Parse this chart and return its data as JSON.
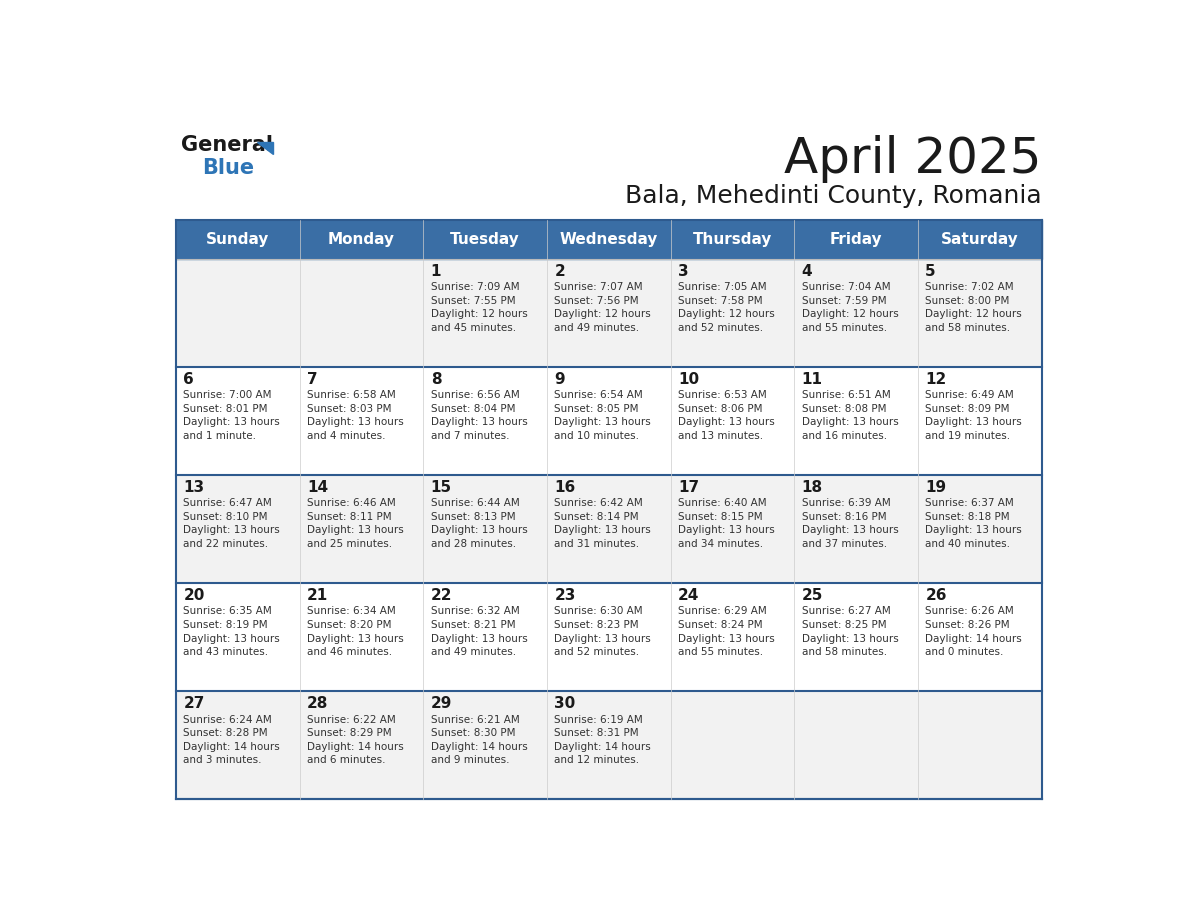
{
  "title": "April 2025",
  "subtitle": "Bala, Mehedinti County, Romania",
  "days_of_week": [
    "Sunday",
    "Monday",
    "Tuesday",
    "Wednesday",
    "Thursday",
    "Friday",
    "Saturday"
  ],
  "header_bg": "#3A6EA5",
  "header_text": "#FFFFFF",
  "row_bg_odd": "#F2F2F2",
  "row_bg_even": "#FFFFFF",
  "text_color": "#333333",
  "day_num_color": "#1a1a1a",
  "border_color": "#2E5A8E",
  "calendar": [
    [
      {
        "day": "",
        "info": ""
      },
      {
        "day": "",
        "info": ""
      },
      {
        "day": "1",
        "info": "Sunrise: 7:09 AM\nSunset: 7:55 PM\nDaylight: 12 hours\nand 45 minutes."
      },
      {
        "day": "2",
        "info": "Sunrise: 7:07 AM\nSunset: 7:56 PM\nDaylight: 12 hours\nand 49 minutes."
      },
      {
        "day": "3",
        "info": "Sunrise: 7:05 AM\nSunset: 7:58 PM\nDaylight: 12 hours\nand 52 minutes."
      },
      {
        "day": "4",
        "info": "Sunrise: 7:04 AM\nSunset: 7:59 PM\nDaylight: 12 hours\nand 55 minutes."
      },
      {
        "day": "5",
        "info": "Sunrise: 7:02 AM\nSunset: 8:00 PM\nDaylight: 12 hours\nand 58 minutes."
      }
    ],
    [
      {
        "day": "6",
        "info": "Sunrise: 7:00 AM\nSunset: 8:01 PM\nDaylight: 13 hours\nand 1 minute."
      },
      {
        "day": "7",
        "info": "Sunrise: 6:58 AM\nSunset: 8:03 PM\nDaylight: 13 hours\nand 4 minutes."
      },
      {
        "day": "8",
        "info": "Sunrise: 6:56 AM\nSunset: 8:04 PM\nDaylight: 13 hours\nand 7 minutes."
      },
      {
        "day": "9",
        "info": "Sunrise: 6:54 AM\nSunset: 8:05 PM\nDaylight: 13 hours\nand 10 minutes."
      },
      {
        "day": "10",
        "info": "Sunrise: 6:53 AM\nSunset: 8:06 PM\nDaylight: 13 hours\nand 13 minutes."
      },
      {
        "day": "11",
        "info": "Sunrise: 6:51 AM\nSunset: 8:08 PM\nDaylight: 13 hours\nand 16 minutes."
      },
      {
        "day": "12",
        "info": "Sunrise: 6:49 AM\nSunset: 8:09 PM\nDaylight: 13 hours\nand 19 minutes."
      }
    ],
    [
      {
        "day": "13",
        "info": "Sunrise: 6:47 AM\nSunset: 8:10 PM\nDaylight: 13 hours\nand 22 minutes."
      },
      {
        "day": "14",
        "info": "Sunrise: 6:46 AM\nSunset: 8:11 PM\nDaylight: 13 hours\nand 25 minutes."
      },
      {
        "day": "15",
        "info": "Sunrise: 6:44 AM\nSunset: 8:13 PM\nDaylight: 13 hours\nand 28 minutes."
      },
      {
        "day": "16",
        "info": "Sunrise: 6:42 AM\nSunset: 8:14 PM\nDaylight: 13 hours\nand 31 minutes."
      },
      {
        "day": "17",
        "info": "Sunrise: 6:40 AM\nSunset: 8:15 PM\nDaylight: 13 hours\nand 34 minutes."
      },
      {
        "day": "18",
        "info": "Sunrise: 6:39 AM\nSunset: 8:16 PM\nDaylight: 13 hours\nand 37 minutes."
      },
      {
        "day": "19",
        "info": "Sunrise: 6:37 AM\nSunset: 8:18 PM\nDaylight: 13 hours\nand 40 minutes."
      }
    ],
    [
      {
        "day": "20",
        "info": "Sunrise: 6:35 AM\nSunset: 8:19 PM\nDaylight: 13 hours\nand 43 minutes."
      },
      {
        "day": "21",
        "info": "Sunrise: 6:34 AM\nSunset: 8:20 PM\nDaylight: 13 hours\nand 46 minutes."
      },
      {
        "day": "22",
        "info": "Sunrise: 6:32 AM\nSunset: 8:21 PM\nDaylight: 13 hours\nand 49 minutes."
      },
      {
        "day": "23",
        "info": "Sunrise: 6:30 AM\nSunset: 8:23 PM\nDaylight: 13 hours\nand 52 minutes."
      },
      {
        "day": "24",
        "info": "Sunrise: 6:29 AM\nSunset: 8:24 PM\nDaylight: 13 hours\nand 55 minutes."
      },
      {
        "day": "25",
        "info": "Sunrise: 6:27 AM\nSunset: 8:25 PM\nDaylight: 13 hours\nand 58 minutes."
      },
      {
        "day": "26",
        "info": "Sunrise: 6:26 AM\nSunset: 8:26 PM\nDaylight: 14 hours\nand 0 minutes."
      }
    ],
    [
      {
        "day": "27",
        "info": "Sunrise: 6:24 AM\nSunset: 8:28 PM\nDaylight: 14 hours\nand 3 minutes."
      },
      {
        "day": "28",
        "info": "Sunrise: 6:22 AM\nSunset: 8:29 PM\nDaylight: 14 hours\nand 6 minutes."
      },
      {
        "day": "29",
        "info": "Sunrise: 6:21 AM\nSunset: 8:30 PM\nDaylight: 14 hours\nand 9 minutes."
      },
      {
        "day": "30",
        "info": "Sunrise: 6:19 AM\nSunset: 8:31 PM\nDaylight: 14 hours\nand 12 minutes."
      },
      {
        "day": "",
        "info": ""
      },
      {
        "day": "",
        "info": ""
      },
      {
        "day": "",
        "info": ""
      }
    ]
  ]
}
